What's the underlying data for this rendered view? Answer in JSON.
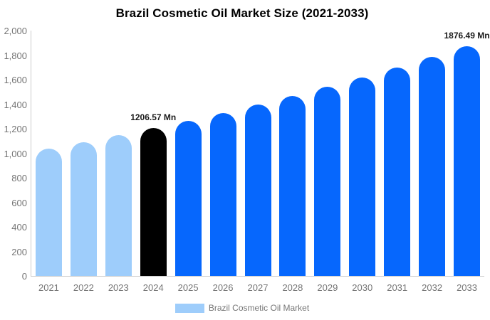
{
  "title": "Brazil Cosmetic Oil Market Size (2021-2033)",
  "legend": {
    "label": "Brazil Cosmetic Oil Market",
    "swatch_color": "#9ECDFB"
  },
  "colors": {
    "historical_bar": "#9ECDFB",
    "base_year_bar": "#000000",
    "forecast_bar": "#0667FD",
    "axis_line": "#CCCCCC",
    "tick_text": "#757575",
    "data_label_text": "#1A1A1A",
    "title_text": "#000000",
    "background": "#FFFFFF"
  },
  "chart_data": {
    "type": "bar",
    "title": "Brazil Cosmetic Oil Market Size (2021-2033)",
    "xlabel": "",
    "ylabel": "",
    "ylim": [
      0,
      2000
    ],
    "grid": false,
    "legend_position": "bottom",
    "categories": [
      "2021",
      "2022",
      "2023",
      "2024",
      "2025",
      "2026",
      "2027",
      "2028",
      "2029",
      "2030",
      "2031",
      "2032",
      "2033"
    ],
    "values": [
      1041.4,
      1093.74,
      1148.77,
      1206.57,
      1267.27,
      1331.03,
      1397.99,
      1468.33,
      1542.2,
      1619.79,
      1701.28,
      1786.88,
      1876.49
    ],
    "bar_colors": [
      "#9ECDFB",
      "#9ECDFB",
      "#9ECDFB",
      "#000000",
      "#0667FD",
      "#0667FD",
      "#0667FD",
      "#0667FD",
      "#0667FD",
      "#0667FD",
      "#0667FD",
      "#0667FD",
      "#0667FD"
    ],
    "data_labels": [
      {
        "category": "2024",
        "index": 3,
        "text": "1206.57 Mn"
      },
      {
        "category": "2033",
        "index": 12,
        "text": "1876.49 Mn"
      }
    ],
    "y_ticks": [
      {
        "value": 0,
        "label": "0"
      },
      {
        "value": 200,
        "label": "200"
      },
      {
        "value": 400,
        "label": "400"
      },
      {
        "value": 600,
        "label": "600"
      },
      {
        "value": 800,
        "label": "800"
      },
      {
        "value": 1000,
        "label": "1,000"
      },
      {
        "value": 1200,
        "label": "1,200"
      },
      {
        "value": 1400,
        "label": "1,400"
      },
      {
        "value": 1600,
        "label": "1,600"
      },
      {
        "value": 1800,
        "label": "1,800"
      },
      {
        "value": 2000,
        "label": "2,000"
      }
    ],
    "series": [
      {
        "name": "Brazil Cosmetic Oil Market",
        "values": [
          1041.4,
          1093.74,
          1148.77,
          1206.57,
          1267.27,
          1331.03,
          1397.99,
          1468.33,
          1542.2,
          1619.79,
          1701.28,
          1786.88,
          1876.49
        ]
      }
    ]
  }
}
